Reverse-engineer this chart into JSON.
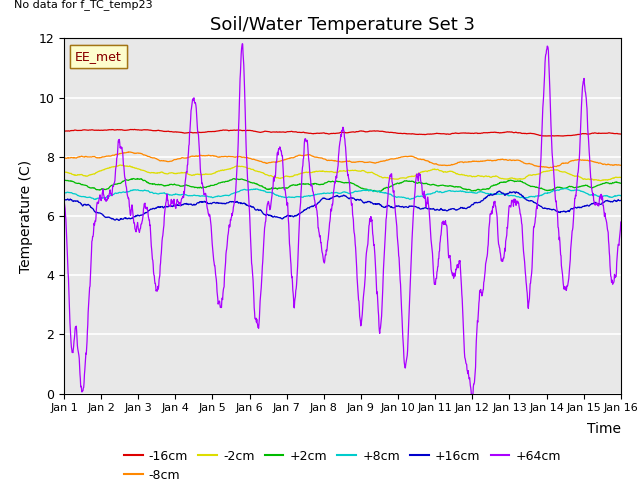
{
  "title": "Soil/Water Temperature Set 3",
  "xlabel": "Time",
  "ylabel": "Temperature (C)",
  "note": "No data for f_TC_temp23",
  "legend_label": "EE_met",
  "ylim": [
    0,
    12
  ],
  "xlim": [
    0,
    15
  ],
  "xtick_labels": [
    "Jan 1",
    "Jan 2",
    "Jan 3",
    "Jan 4",
    "Jan 5",
    "Jan 6",
    "Jan 7",
    "Jan 8",
    "Jan 9",
    "Jan 10",
    "Jan 11",
    "Jan 12",
    "Jan 13",
    "Jan 14",
    "Jan 15",
    "Jan 16"
  ],
  "series_order": [
    "-16cm",
    "-8cm",
    "-2cm",
    "+2cm",
    "+8cm",
    "+16cm",
    "+64cm"
  ],
  "series": {
    "-16cm": {
      "color": "#dd0000",
      "base": 8.9,
      "noise": 0.04
    },
    "-8cm": {
      "color": "#ff8800",
      "base": 8.05,
      "noise": 0.06
    },
    "-2cm": {
      "color": "#dddd00",
      "base": 7.55,
      "noise": 0.07
    },
    "+2cm": {
      "color": "#00bb00",
      "base": 7.1,
      "noise": 0.08
    },
    "+8cm": {
      "color": "#00cccc",
      "base": 6.75,
      "noise": 0.07
    },
    "+16cm": {
      "color": "#0000cc",
      "base": 6.2,
      "noise": 0.12
    },
    "+64cm": {
      "color": "#aa00ff",
      "base": 6.5,
      "noise": 0.3
    }
  },
  "background_color": "#e8e8e8",
  "grid_color": "#ffffff",
  "title_fontsize": 13,
  "axis_fontsize": 10,
  "tick_fontsize": 9,
  "legend_fontsize": 9
}
